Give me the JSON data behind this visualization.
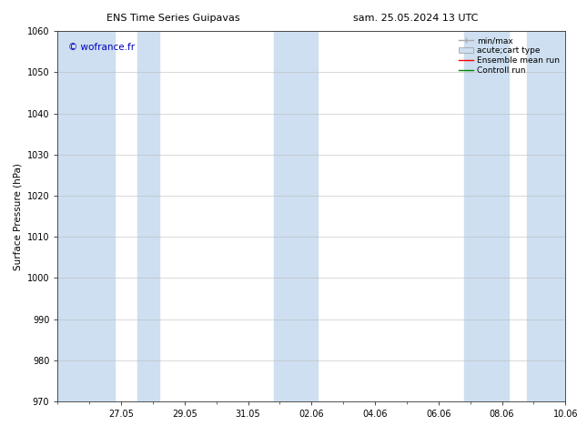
{
  "title_left": "ENS Time Series Guipavas",
  "title_right": "sam. 25.05.2024 13 UTC",
  "ylabel": "Surface Pressure (hPa)",
  "ylim": [
    970,
    1060
  ],
  "yticks": [
    970,
    980,
    990,
    1000,
    1010,
    1020,
    1030,
    1040,
    1050,
    1060
  ],
  "xtick_labels": [
    "27.05",
    "29.05",
    "31.05",
    "02.06",
    "04.06",
    "06.06",
    "08.06",
    "10.06"
  ],
  "xlim_days": 16.0,
  "watermark": "© wofrance.fr",
  "watermark_color": "#0000bb",
  "shaded_bands": [
    {
      "xmin": 0.0,
      "xmax": 1.8
    },
    {
      "xmin": 2.5,
      "xmax": 3.2
    },
    {
      "xmin": 6.8,
      "xmax": 8.2
    },
    {
      "xmin": 12.8,
      "xmax": 14.2
    },
    {
      "xmin": 14.8,
      "xmax": 16.0
    }
  ],
  "shaded_color": "#cddff0",
  "legend_labels": [
    "min/max",
    "acute;cart type",
    "Ensemble mean run",
    "Controll run"
  ],
  "legend_colors": [
    "#aaaaaa",
    "#cddff0",
    "#ff0000",
    "#008800"
  ],
  "background_color": "#ffffff",
  "grid_color": "#bbbbbb",
  "title_fontsize": 8,
  "tick_fontsize": 7,
  "ylabel_fontsize": 7.5,
  "watermark_fontsize": 7.5,
  "legend_fontsize": 6.5
}
